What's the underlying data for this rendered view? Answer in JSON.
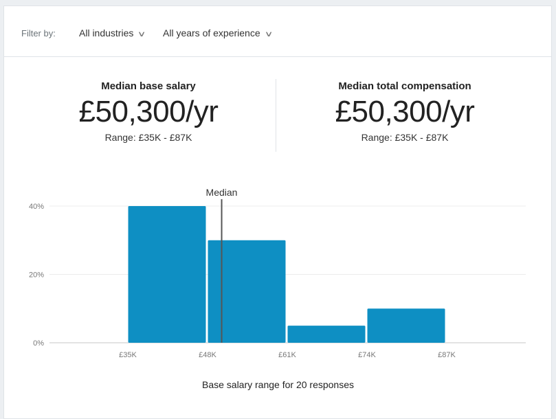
{
  "filter": {
    "label": "Filter by:",
    "industry": "All industries",
    "experience": "All years of experience"
  },
  "stats": [
    {
      "title": "Median base salary",
      "value": "£50,300/yr",
      "range": "Range: £35K - £87K"
    },
    {
      "title": "Median total compensation",
      "value": "£50,300/yr",
      "range": "Range: £35K - £87K"
    }
  ],
  "chart_data": {
    "type": "bar",
    "bins": [
      [
        35,
        48
      ],
      [
        48,
        61
      ],
      [
        61,
        74
      ],
      [
        74,
        87
      ]
    ],
    "values": [
      40,
      30,
      5,
      10
    ],
    "x_ticks": [
      "£35K",
      "£48K",
      "£61K",
      "£74K",
      "£87K"
    ],
    "x_tick_values": [
      35,
      48,
      61,
      74,
      87
    ],
    "y_ticks": [
      "0%",
      "20%",
      "40%"
    ],
    "y_tick_values": [
      0,
      20,
      40
    ],
    "ylim": [
      0,
      40
    ],
    "median": 50.3,
    "median_label": "Median",
    "xlabel": "Base salary range for 20 responses",
    "grid": true,
    "bar_color": "#0e8fc3"
  }
}
